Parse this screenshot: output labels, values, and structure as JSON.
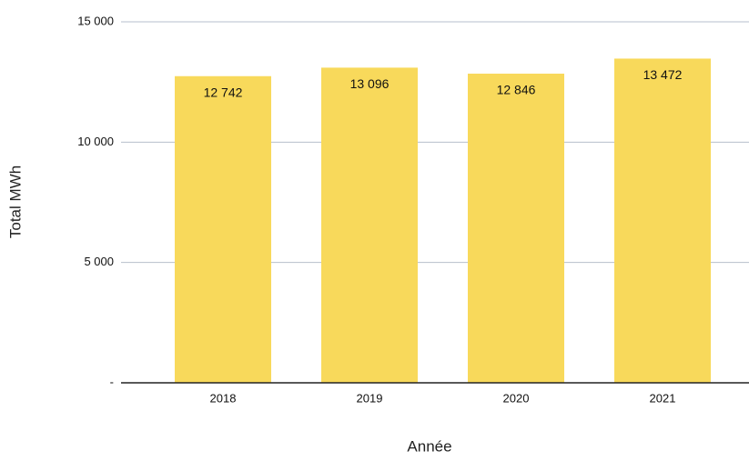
{
  "chart_data": {
    "type": "bar",
    "x_label": "Année",
    "y_label": "Total MWh",
    "categories": [
      "2018",
      "2019",
      "2020",
      "2021"
    ],
    "values": [
      12742,
      13096,
      12846,
      13472
    ],
    "value_labels": [
      "12 742",
      "13 096",
      "12 846",
      "13 472"
    ],
    "color": "#f8d95b",
    "ylim": [
      0,
      15000
    ],
    "yticks": [
      {
        "value": 0,
        "label": "-"
      },
      {
        "value": 5000,
        "label": "5 000"
      },
      {
        "value": 10000,
        "label": "10 000"
      },
      {
        "value": 15000,
        "label": "15 000"
      }
    ],
    "grid": true
  }
}
